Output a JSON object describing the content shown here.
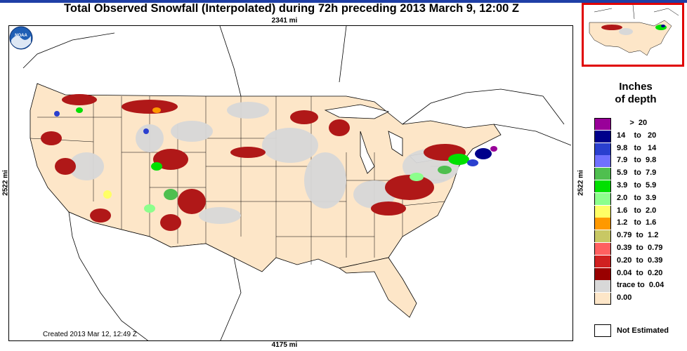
{
  "title": "Total Observed Snowfall (Interpolated) during 72h preceding 2013 March 9, 12:00 Z",
  "dimensions": {
    "top": "2341 mi",
    "bottom": "4175 mi",
    "left": "2522 mi",
    "right": "2522 mi"
  },
  "created": "Created 2013 Mar 12, 12:49 Z",
  "logo_text": "NOAA",
  "legend": {
    "title_line1": "Inches",
    "title_line2": "of depth",
    "items": [
      {
        "label": "      >  20",
        "color": "#990099"
      },
      {
        "label": "14    to   20",
        "color": "#00008b"
      },
      {
        "label": "9.8   to   14",
        "color": "#2a3fcf"
      },
      {
        "label": "7.9   to  9.8",
        "color": "#7070ff"
      },
      {
        "label": "5.9   to  7.9",
        "color": "#4fbf4f"
      },
      {
        "label": "3.9   to  5.9",
        "color": "#00e000"
      },
      {
        "label": "2.0   to  3.9",
        "color": "#8cff8c"
      },
      {
        "label": "1.6   to  2.0",
        "color": "#ffff66"
      },
      {
        "label": "1.2   to  1.6",
        "color": "#ff9900"
      },
      {
        "label": "0.79  to  1.2",
        "color": "#c8c864"
      },
      {
        "label": "0.39  to  0.79",
        "color": "#ff6060"
      },
      {
        "label": "0.20  to  0.39",
        "color": "#d02020"
      },
      {
        "label": "0.04  to  0.20",
        "color": "#990000"
      },
      {
        "label": "trace to  0.04",
        "color": "#d8d8d8"
      },
      {
        "label": "0.00",
        "color": "#fde6c8"
      }
    ],
    "not_estimated": "Not Estimated"
  }
}
